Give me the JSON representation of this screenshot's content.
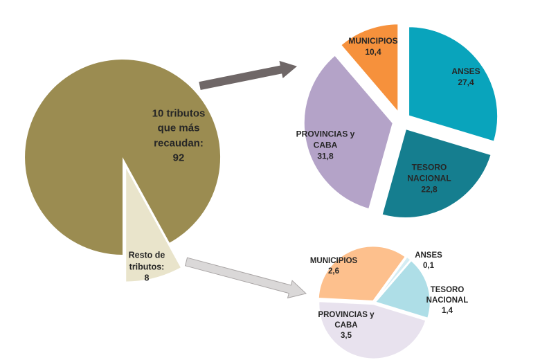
{
  "figure": {
    "background": "#FFFFFF",
    "text_color": "#262626",
    "arrows": [
      {
        "name": "arrow-to-top-pie",
        "fill": "#6F6767",
        "stroke": "#6F6767"
      },
      {
        "name": "arrow-to-bottom-pie",
        "fill": "#DAD8D8",
        "stroke": "#A9A5A5"
      }
    ]
  },
  "chart_data": [
    {
      "id": "main-pie",
      "type": "pie",
      "legend_position": "none",
      "slices": [
        {
          "label": "10 tributos que más recaudan:",
          "value": 92,
          "value_display": "92",
          "color": "#9B8C51"
        },
        {
          "label": "Resto de tributos:",
          "value": 8,
          "value_display": "8",
          "color": "#E9E4CB"
        }
      ]
    },
    {
      "id": "top-detail-pie",
      "type": "pie",
      "legend_position": "none",
      "slices": [
        {
          "label": "ANSES",
          "value": 27.4,
          "value_display": "27,4",
          "color": "#09A4BC"
        },
        {
          "label": "TESORO NACIONAL",
          "value": 22.8,
          "value_display": "22,8",
          "color": "#157E8F"
        },
        {
          "label": "PROVINCIAS y CABA",
          "value": 31.8,
          "value_display": "31,8",
          "color": "#B4A3C8"
        },
        {
          "label": "MUNICIPIOS",
          "value": 10.4,
          "value_display": "10,4",
          "color": "#F6913C"
        }
      ]
    },
    {
      "id": "bottom-detail-pie",
      "type": "pie",
      "legend_position": "none",
      "slices": [
        {
          "label": "ANSES",
          "value": 0.1,
          "value_display": "0,1",
          "color": "#D5EDF3"
        },
        {
          "label": "TESORO NACIONAL",
          "value": 1.4,
          "value_display": "1,4",
          "color": "#AEDEE7"
        },
        {
          "label": "PROVINCIAS y CABA",
          "value": 3.5,
          "value_display": "3,5",
          "color": "#E8E2EE"
        },
        {
          "label": "MUNICIPIOS",
          "value": 2.6,
          "value_display": "2,6",
          "color": "#FDC08D"
        }
      ]
    }
  ]
}
